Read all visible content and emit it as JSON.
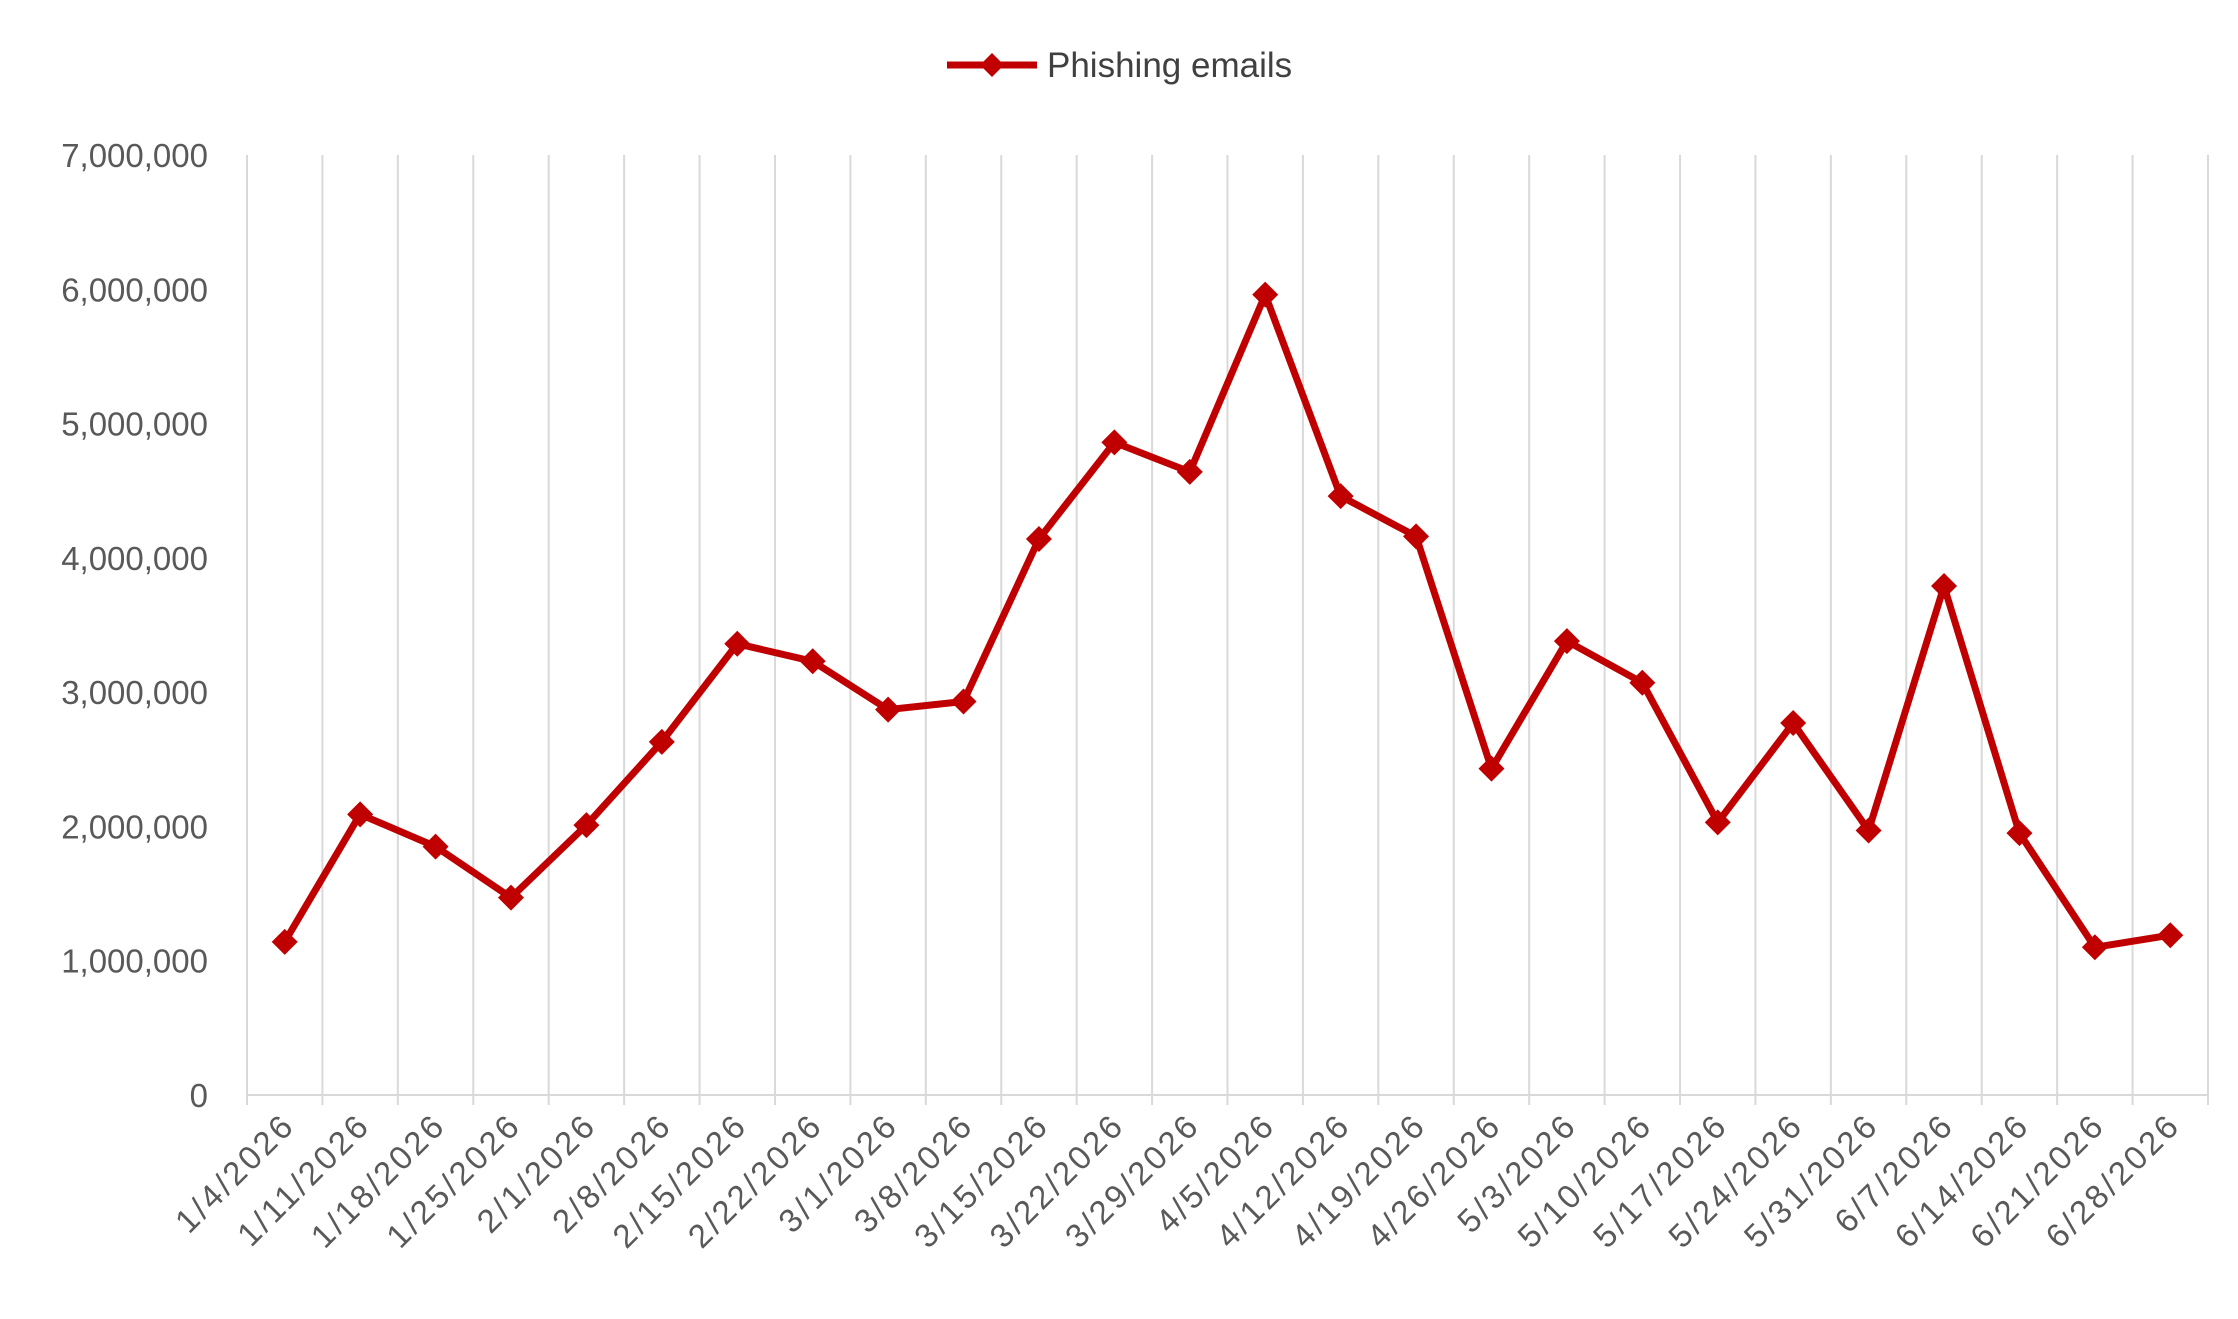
{
  "chart_data": {
    "type": "line",
    "title": "",
    "xlabel": "",
    "ylabel": "",
    "categories": [
      "1/4/2026",
      "1/11/2026",
      "1/18/2026",
      "1/25/2026",
      "2/1/2026",
      "2/8/2026",
      "2/15/2026",
      "2/22/2026",
      "3/1/2026",
      "3/8/2026",
      "3/15/2026",
      "3/22/2026",
      "3/29/2026",
      "4/5/2026",
      "4/12/2026",
      "4/19/2026",
      "4/26/2026",
      "5/3/2026",
      "5/10/2026",
      "5/17/2026",
      "5/24/2026",
      "5/31/2026",
      "6/7/2026",
      "6/14/2026",
      "6/21/2026",
      "6/28/2026"
    ],
    "series": [
      {
        "name": "Phishing emails",
        "color": "#C00000",
        "marker": "diamond",
        "values": [
          1140000,
          2090000,
          1850000,
          1470000,
          2010000,
          2630000,
          3360000,
          3230000,
          2870000,
          2930000,
          4140000,
          4860000,
          4640000,
          5960000,
          4460000,
          4160000,
          2430000,
          3380000,
          3070000,
          2030000,
          2770000,
          1970000,
          3790000,
          1950000,
          1100000,
          1190000
        ]
      }
    ],
    "ylim": [
      0,
      7000000
    ],
    "yticks": [
      0,
      1000000,
      2000000,
      3000000,
      4000000,
      5000000,
      6000000,
      7000000
    ],
    "ytick_labels": [
      "0",
      "1,000,000",
      "2,000,000",
      "3,000,000",
      "4,000,000",
      "5,000,000",
      "6,000,000",
      "7,000,000"
    ],
    "grid": "vertical",
    "legend": "top-center"
  }
}
